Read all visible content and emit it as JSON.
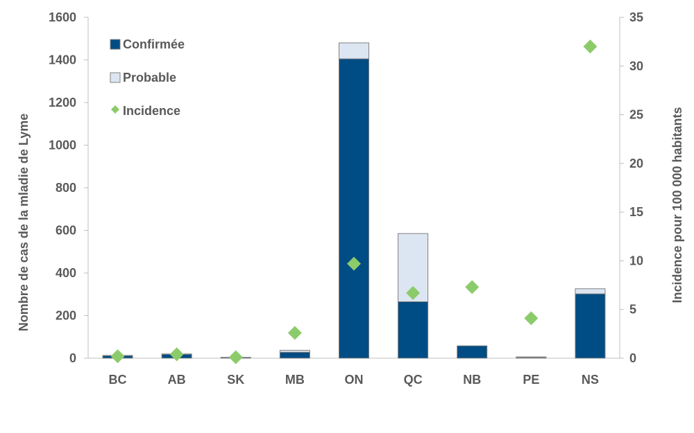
{
  "chart_data": {
    "type": "bar",
    "stacked": true,
    "categories": [
      "BC",
      "AB",
      "SK",
      "MB",
      "ON",
      "QC",
      "NB",
      "PE",
      "NS"
    ],
    "series": [
      {
        "name": "Confirmée",
        "kind": "bar",
        "axis": "left",
        "color": "#004C84",
        "values": [
          12,
          18,
          4,
          28,
          1405,
          265,
          58,
          3,
          302
        ]
      },
      {
        "name": "Probable",
        "kind": "bar",
        "axis": "left",
        "color": "#DCE6F2",
        "values": [
          1,
          2,
          0,
          9,
          75,
          320,
          0,
          3,
          24
        ]
      },
      {
        "name": "Incidence",
        "kind": "marker",
        "axis": "right",
        "color": "#8CCB6A",
        "values": [
          0.2,
          0.4,
          0.1,
          2.6,
          9.7,
          6.7,
          7.3,
          4.1,
          32.0
        ]
      }
    ],
    "ylabel": "Nombre de cas de la mladie de Lyme",
    "ylabel_right": "Incidence pour 100 000 habitants",
    "ylim": [
      0,
      1600
    ],
    "ylim_right": [
      0,
      35
    ],
    "yticks": [
      0,
      200,
      400,
      600,
      800,
      1000,
      1200,
      1400,
      1600
    ],
    "yticks_right": [
      0,
      5,
      10,
      15,
      20,
      25,
      30,
      35
    ],
    "legend": "top-left",
    "grid": false
  }
}
